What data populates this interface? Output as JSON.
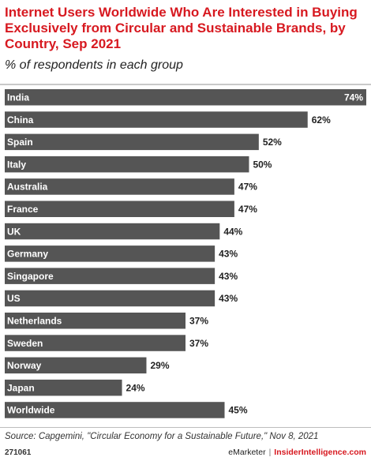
{
  "header": {
    "title": "Internet Users Worldwide Who Are Interested in Buying Exclusively from Circular and Sustainable Brands, by Country, Sep 2021",
    "subtitle": "% of respondents in each group"
  },
  "chart_data": {
    "type": "bar",
    "orientation": "horizontal",
    "categories": [
      "India",
      "China",
      "Spain",
      "Italy",
      "Australia",
      "France",
      "UK",
      "Germany",
      "Singapore",
      "US",
      "Netherlands",
      "Sweden",
      "Norway",
      "Japan",
      "Worldwide"
    ],
    "values": [
      74,
      62,
      52,
      50,
      47,
      47,
      44,
      43,
      43,
      43,
      37,
      37,
      29,
      24,
      45
    ],
    "value_labels": [
      "74%",
      "62%",
      "52%",
      "50%",
      "47%",
      "47%",
      "44%",
      "43%",
      "43%",
      "43%",
      "37%",
      "37%",
      "29%",
      "24%",
      "45%"
    ],
    "unit": "%",
    "xlim": [
      0,
      74
    ],
    "bar_color": "#555555",
    "grid": false,
    "legend": "none"
  },
  "footer": {
    "source": "Source: Capgemini, \"Circular Economy for a Sustainable Future,\" Nov 8, 2021",
    "chart_id": "271061",
    "brand_emarketer": "eMarketer",
    "brand_separator": "|",
    "brand_insider": "InsiderIntelligence.com"
  },
  "colors": {
    "title": "#d71920",
    "bar": "#555555",
    "brand_accent": "#d71920"
  }
}
